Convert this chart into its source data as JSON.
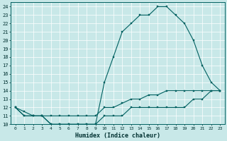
{
  "xlabel": "Humidex (Indice chaleur)",
  "bg_color": "#c8e8e8",
  "grid_color": "#ffffff",
  "line_color": "#006060",
  "x": [
    0,
    1,
    2,
    3,
    4,
    5,
    6,
    7,
    8,
    9,
    10,
    11,
    12,
    13,
    14,
    15,
    16,
    17,
    18,
    19,
    20,
    21,
    22,
    23
  ],
  "y_max": [
    12,
    11,
    11,
    11,
    10,
    10,
    10,
    10,
    10,
    10,
    15,
    18,
    21,
    22,
    23,
    23,
    24,
    24,
    23,
    22,
    20,
    17,
    15,
    14
  ],
  "y_mean": [
    12,
    11.5,
    11,
    11,
    11,
    11,
    11,
    11,
    11,
    11,
    12,
    12,
    12.5,
    13,
    13,
    13.5,
    13.5,
    14,
    14,
    14,
    14,
    14,
    14,
    14
  ],
  "y_min": [
    12,
    11,
    11,
    11,
    10,
    10,
    10,
    10,
    10,
    10,
    11,
    11,
    11,
    12,
    12,
    12,
    12,
    12,
    12,
    12,
    13,
    13,
    14,
    14
  ],
  "ylim": [
    10,
    24.5
  ],
  "yticks": [
    10,
    11,
    12,
    13,
    14,
    15,
    16,
    17,
    18,
    19,
    20,
    21,
    22,
    23,
    24
  ],
  "xlim": [
    -0.5,
    23.5
  ],
  "xticks": [
    0,
    1,
    2,
    3,
    4,
    5,
    6,
    7,
    8,
    9,
    10,
    11,
    12,
    13,
    14,
    15,
    16,
    17,
    18,
    19,
    20,
    21,
    22,
    23
  ]
}
